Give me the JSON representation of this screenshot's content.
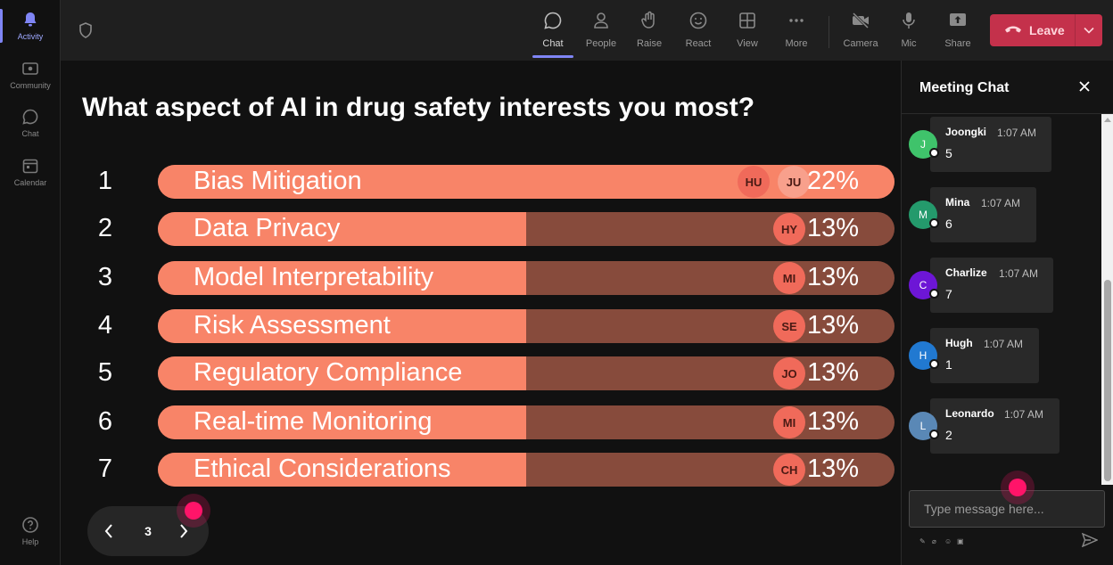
{
  "rail": {
    "items": [
      {
        "label": "Activity",
        "icon": "bell-icon"
      },
      {
        "label": "Community",
        "icon": "community-icon"
      },
      {
        "label": "Chat",
        "icon": "chat-icon"
      },
      {
        "label": "Calendar",
        "icon": "calendar-icon"
      }
    ],
    "help": {
      "label": "Help",
      "icon": "help-icon"
    }
  },
  "toolbar": {
    "buttons": [
      {
        "label": "Chat",
        "icon": "chat-icon"
      },
      {
        "label": "People",
        "icon": "people-icon"
      },
      {
        "label": "Raise",
        "icon": "raise-hand-icon"
      },
      {
        "label": "React",
        "icon": "smile-icon"
      },
      {
        "label": "View",
        "icon": "view-grid-icon"
      },
      {
        "label": "More",
        "icon": "more-icon"
      },
      {
        "label": "Camera",
        "icon": "camera-off-icon"
      },
      {
        "label": "Mic",
        "icon": "mic-icon"
      },
      {
        "label": "Share",
        "icon": "share-icon"
      }
    ],
    "leave_label": "Leave"
  },
  "poll": {
    "question": "What aspect of AI in drug safety interests you most?",
    "options": [
      {
        "num": "1",
        "label": "Bias Mitigation",
        "percent_text": "22%",
        "percent": 22,
        "avatars": [
          "HU",
          "JU"
        ]
      },
      {
        "num": "2",
        "label": "Data Privacy",
        "percent_text": "13%",
        "percent": 13,
        "avatars": [
          "HY"
        ]
      },
      {
        "num": "3",
        "label": "Model Interpretability",
        "percent_text": "13%",
        "percent": 13,
        "avatars": [
          "MI"
        ]
      },
      {
        "num": "4",
        "label": "Risk Assessment",
        "percent_text": "13%",
        "percent": 13,
        "avatars": [
          "SE"
        ]
      },
      {
        "num": "5",
        "label": "Regulatory Compliance",
        "percent_text": "13%",
        "percent": 13,
        "avatars": [
          "JO"
        ]
      },
      {
        "num": "6",
        "label": "Real-time Monitoring",
        "percent_text": "13%",
        "percent": 13,
        "avatars": [
          "MI"
        ]
      },
      {
        "num": "7",
        "label": "Ethical Considerations",
        "percent_text": "13%",
        "percent": 13,
        "avatars": [
          "CH"
        ]
      }
    ],
    "page": "3",
    "colors": {
      "fill": "#f88468",
      "track": "#874b3c"
    }
  },
  "chat": {
    "title": "Meeting Chat",
    "messages": [
      {
        "name": "Joongki",
        "time": "1:07 AM",
        "text": "5",
        "initial": "J",
        "color": "#3fc36b"
      },
      {
        "name": "Mina",
        "time": "1:07 AM",
        "text": "6",
        "initial": "M",
        "color": "#249a6c"
      },
      {
        "name": "Charlize",
        "time": "1:07 AM",
        "text": "7",
        "initial": "C",
        "color": "#6d16d6"
      },
      {
        "name": "Hugh",
        "time": "1:07 AM",
        "text": "1",
        "initial": "H",
        "color": "#2179d1"
      },
      {
        "name": "Leonardo",
        "time": "1:07 AM",
        "text": "2",
        "initial": "L",
        "color": "#5a88b6"
      }
    ],
    "input_placeholder": "Type message here..."
  }
}
